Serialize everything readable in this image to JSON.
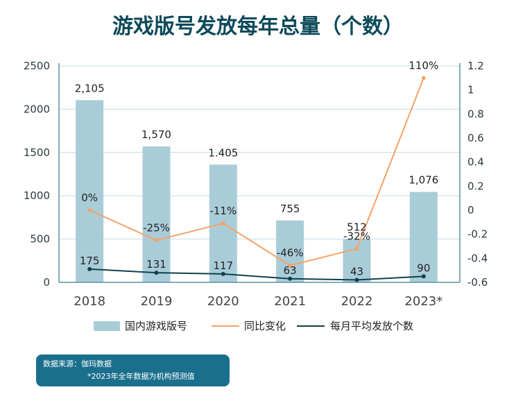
{
  "chart_data": {
    "type": "bar+line",
    "title": "游戏版号发放每年总量（个数）",
    "categories": [
      "2018",
      "2019",
      "2020",
      "2021",
      "2022",
      "2023*"
    ],
    "series": [
      {
        "name": "国内游戏版号",
        "kind": "bar",
        "axis": "left",
        "values": [
          2105,
          1570,
          1405,
          755,
          512,
          1076
        ],
        "labels": [
          "2,105",
          "1,570",
          "1.405",
          "755",
          "512",
          "1,076"
        ],
        "plot_values": [
          2105,
          1570,
          1360,
          715,
          500,
          1045
        ]
      },
      {
        "name": "同比变化",
        "kind": "line",
        "axis": "right",
        "values": [
          0,
          -0.25,
          -0.11,
          -0.46,
          -0.32,
          1.1
        ],
        "labels": [
          "0%",
          "-25%",
          "-11%",
          "-46%",
          "-32%",
          "110%"
        ]
      },
      {
        "name": "每月平均发放个数",
        "kind": "line",
        "axis": "right",
        "values": [
          175,
          131,
          117,
          63,
          43,
          90
        ],
        "labels": [
          "175",
          "131",
          "117",
          "63",
          "43",
          "90"
        ],
        "plot_positions_right_axis": [
          -0.49,
          -0.52,
          -0.53,
          -0.57,
          -0.58,
          -0.55
        ]
      }
    ],
    "y_left": {
      "min": 0,
      "max": 2500,
      "ticks": [
        "0",
        "500",
        "1000",
        "1500",
        "2000",
        "2500"
      ]
    },
    "y_right": {
      "min": -0.6,
      "max": 1.2,
      "ticks": [
        "-0.6",
        "-0.4",
        "-0.2",
        "0",
        "0.2",
        "0.4",
        "0.6",
        "0.8",
        "1",
        "1.2"
      ]
    },
    "grid": true,
    "legend_position": "bottom",
    "colors": {
      "bar": "#a9cdd8",
      "yoy": "#f5a266",
      "monthly": "#10404d",
      "title": "#0d4a5a",
      "box": "#1a6f8c",
      "axis": "#5b8fa0"
    }
  },
  "source": {
    "line1": "数据来源：伽玛数据",
    "line2": "*2023年全年数据为机构预测值"
  }
}
